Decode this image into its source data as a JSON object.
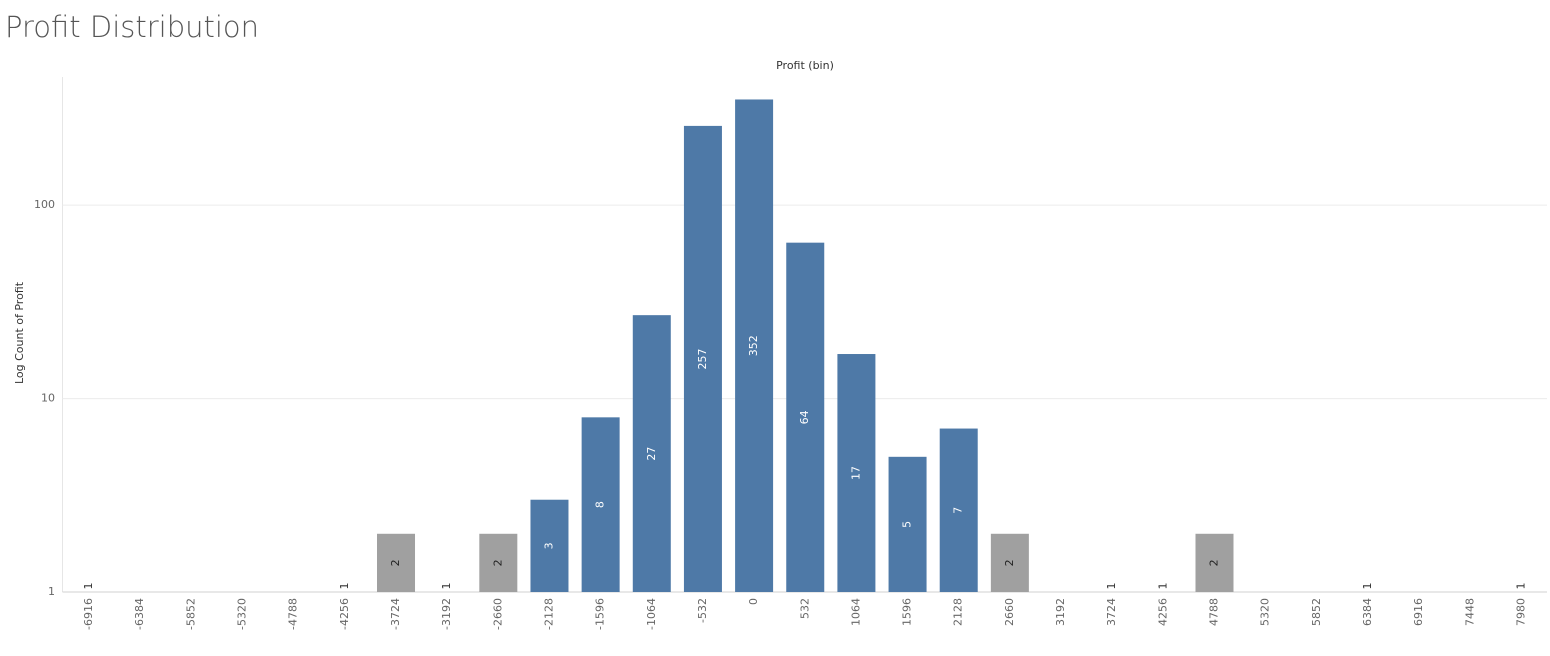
{
  "chart_data": {
    "type": "bar",
    "title": "Profit Distribution",
    "x_label": "Profit (bin)",
    "y_label": "Log Count of Profit",
    "categories": [
      "-6916",
      "-6384",
      "-5852",
      "-5320",
      "-4788",
      "-4256",
      "-3724",
      "-3192",
      "-2660",
      "-2128",
      "-1596",
      "-1064",
      "-532",
      "0",
      "532",
      "1064",
      "1596",
      "2128",
      "2660",
      "3192",
      "3724",
      "4256",
      "4788",
      "5320",
      "5852",
      "6384",
      "6916",
      "7448",
      "7980"
    ],
    "values": [
      1,
      null,
      null,
      null,
      null,
      1,
      2,
      1,
      2,
      3,
      8,
      27,
      257,
      352,
      64,
      17,
      5,
      7,
      2,
      null,
      1,
      1,
      2,
      null,
      null,
      1,
      null,
      null,
      1
    ],
    "colors": [
      "#4e79a7",
      "#4e79a7",
      "#4e79a7",
      "#4e79a7",
      "#4e79a7",
      "#4e79a7",
      "#a0a0a0",
      "#4e79a7",
      "#a0a0a0",
      "#4e79a7",
      "#4e79a7",
      "#4e79a7",
      "#4e79a7",
      "#4e79a7",
      "#4e79a7",
      "#4e79a7",
      "#4e79a7",
      "#4e79a7",
      "#a0a0a0",
      "#4e79a7",
      "#4e79a7",
      "#4e79a7",
      "#a0a0a0",
      "#4e79a7",
      "#4e79a7",
      "#4e79a7",
      "#4e79a7",
      "#4e79a7",
      "#4e79a7"
    ],
    "y_scale": "log",
    "ylim": [
      1,
      460
    ],
    "yticks": [
      1,
      10,
      100
    ],
    "grid": true
  }
}
